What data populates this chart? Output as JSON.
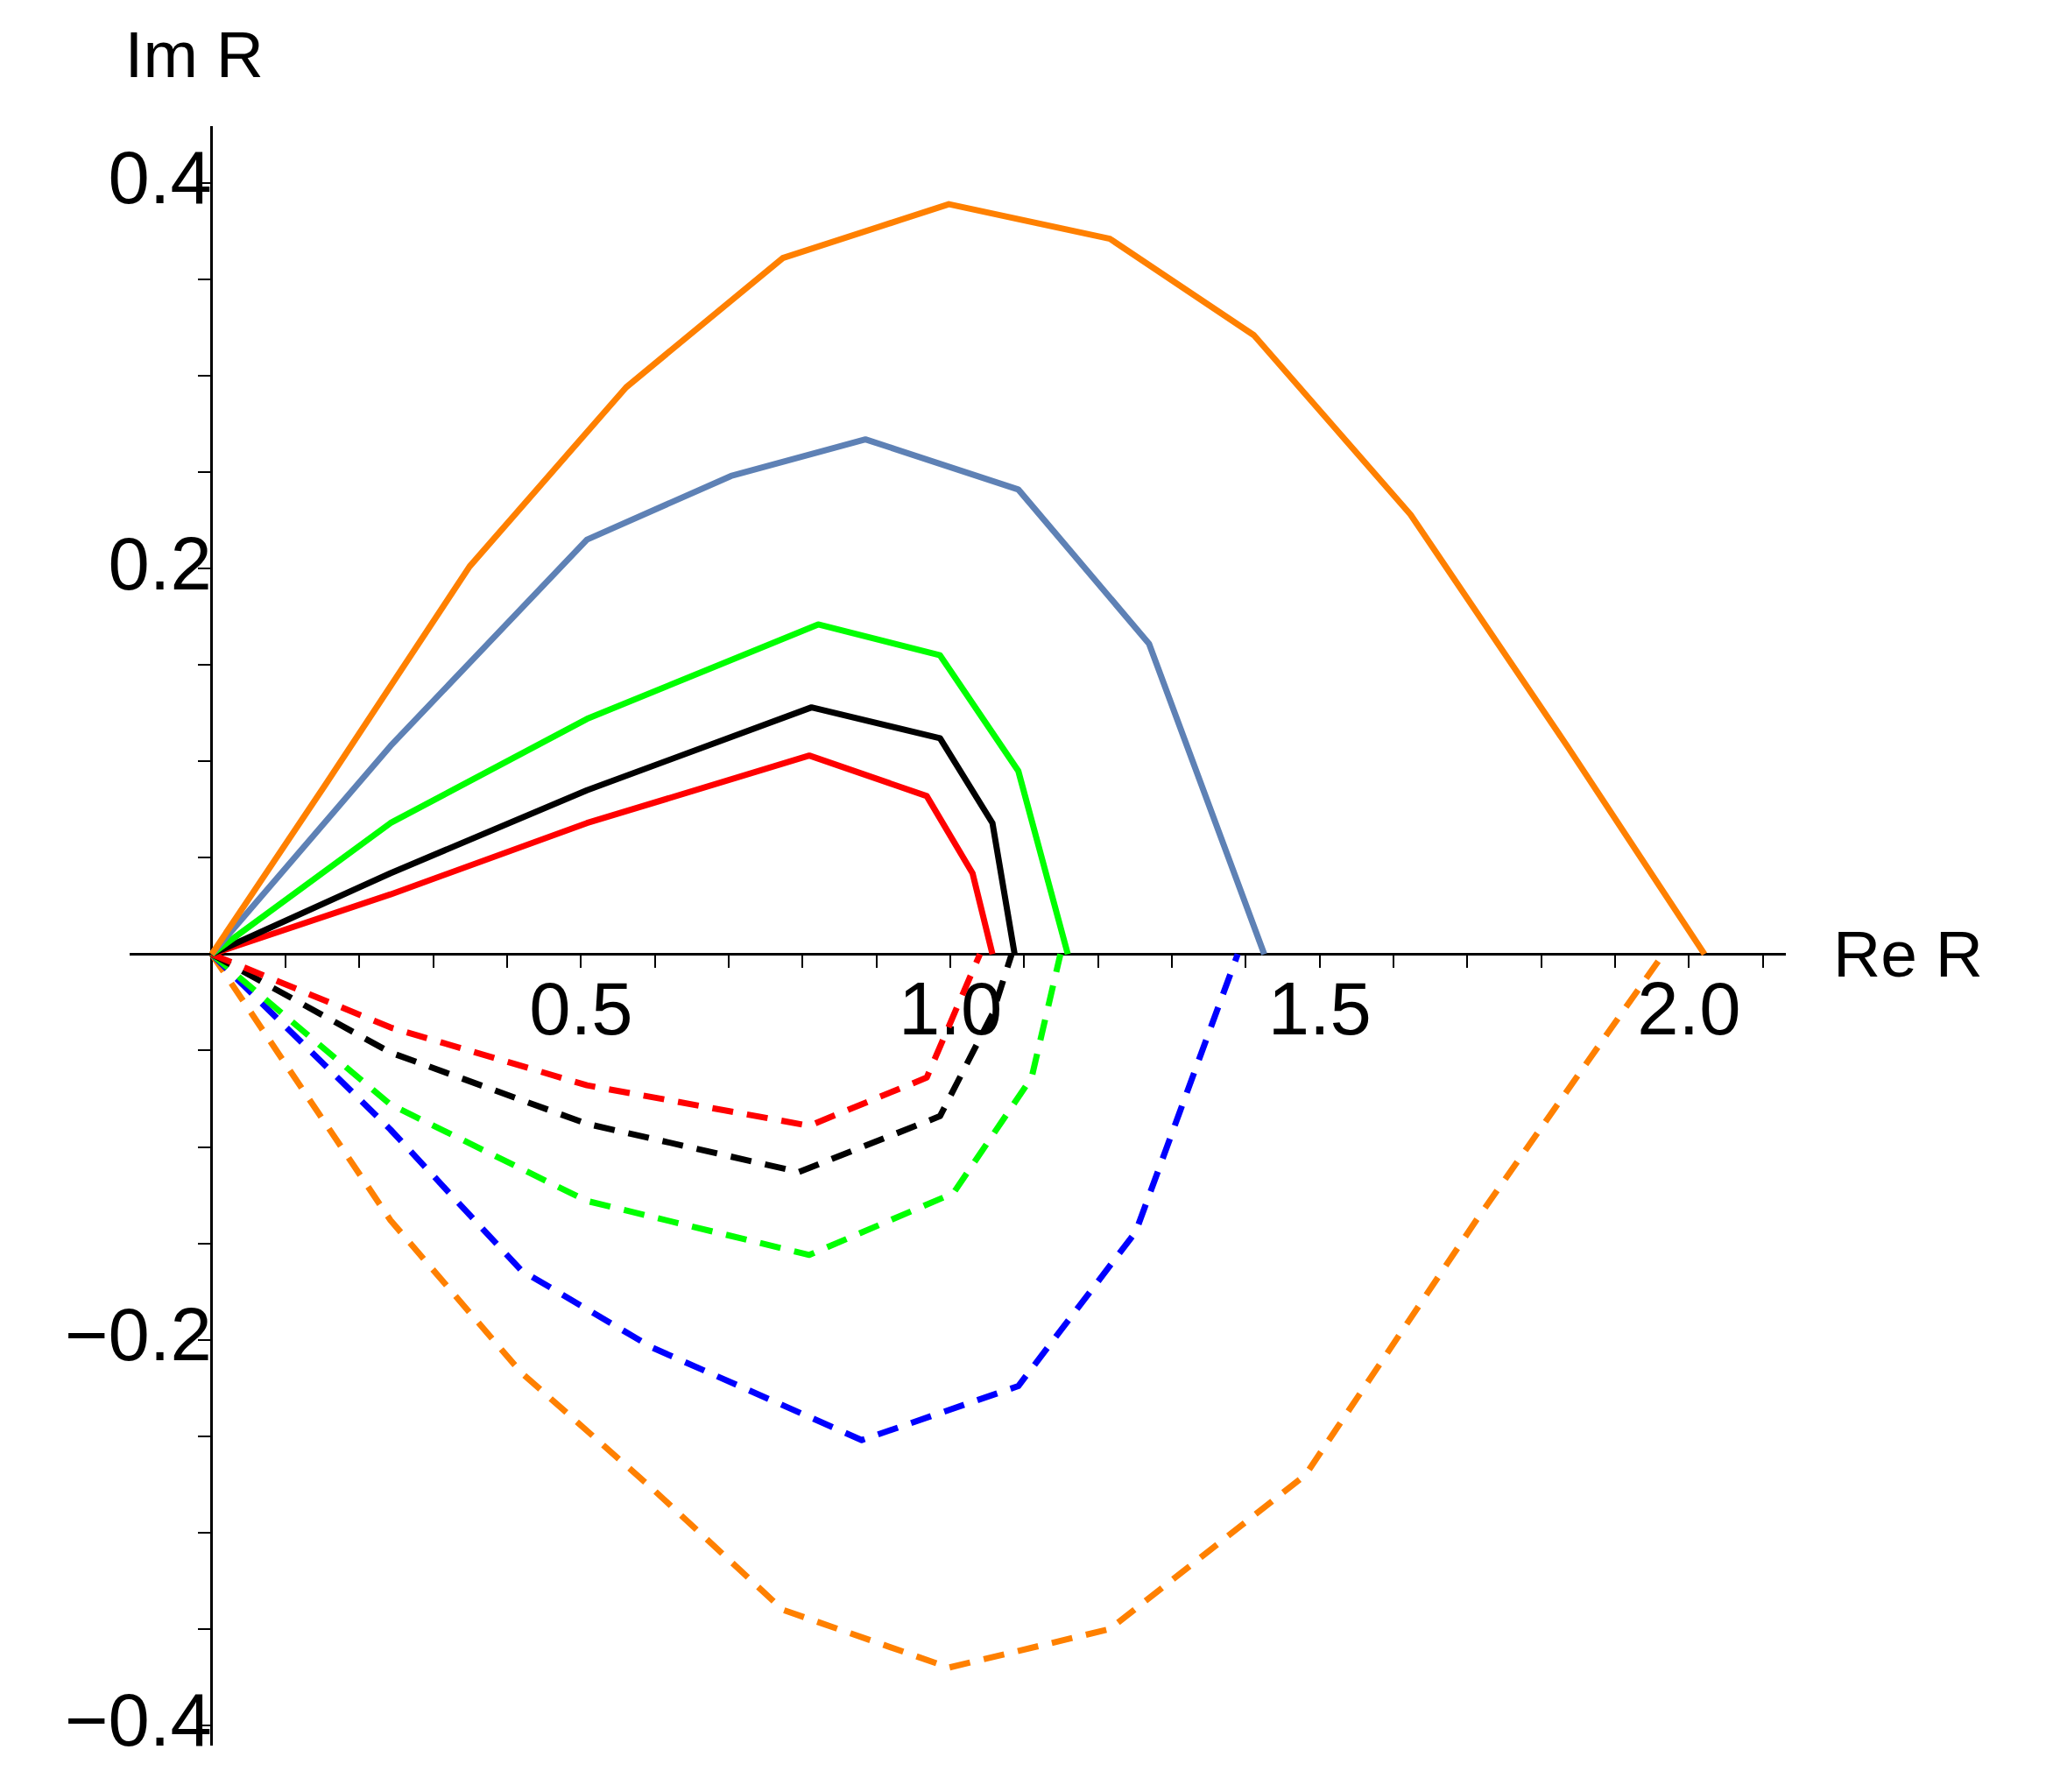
{
  "chart_data": {
    "type": "line",
    "xlabel": "Re R",
    "ylabel": "Im R",
    "xlim": [
      -0.11,
      2.13
    ],
    "ylim": [
      -0.41,
      0.429
    ],
    "xticks": [
      {
        "value": 0.1,
        "label": null
      },
      {
        "value": 0.2,
        "label": null
      },
      {
        "value": 0.3,
        "label": null
      },
      {
        "value": 0.4,
        "label": null
      },
      0.5,
      {
        "value": 0.6,
        "label": null
      },
      {
        "value": 0.7,
        "label": null
      },
      {
        "value": 0.8,
        "label": null
      },
      {
        "value": 0.9,
        "label": null
      },
      {
        "value": 1.0,
        "label": "1.0"
      },
      {
        "value": 1.1,
        "label": null
      },
      {
        "value": 1.2,
        "label": null
      },
      {
        "value": 1.3,
        "label": null
      },
      {
        "value": 1.4,
        "label": null
      },
      1.5,
      {
        "value": 1.6,
        "label": null
      },
      {
        "value": 1.7,
        "label": null
      },
      {
        "value": 1.8,
        "label": null
      },
      {
        "value": 1.9,
        "label": null
      },
      {
        "value": 2.0,
        "label": "2.0"
      },
      {
        "value": 2.1,
        "label": null
      }
    ],
    "yticks": [
      {
        "value": -0.4,
        "label": "−0.4"
      },
      {
        "value": -0.35,
        "label": null
      },
      {
        "value": -0.3,
        "label": null
      },
      {
        "value": -0.25,
        "label": null
      },
      {
        "value": -0.2,
        "label": "−0.2"
      },
      {
        "value": -0.15,
        "label": null
      },
      {
        "value": -0.1,
        "label": null
      },
      {
        "value": -0.05,
        "label": null
      },
      {
        "value": 0.05,
        "label": null
      },
      {
        "value": 0.1,
        "label": null
      },
      {
        "value": 0.15,
        "label": null
      },
      0.2,
      {
        "value": 0.25,
        "label": null
      },
      {
        "value": 0.3,
        "label": null
      },
      {
        "value": 0.35,
        "label": null
      },
      0.4
    ],
    "grid": false,
    "legend": false,
    "marker": "none",
    "series": [
      {
        "color": "#ff8000",
        "line_style": "solid",
        "x": [
          0,
          0.154,
          0.349,
          0.561,
          0.773,
          0.998,
          1.216,
          1.411,
          1.623,
          1.835,
          2.021
        ],
        "values": [
          0,
          0.088,
          0.201,
          0.294,
          0.361,
          0.389,
          0.371,
          0.321,
          0.228,
          0.108,
          0
        ]
      },
      {
        "color": "#5e81b5",
        "line_style": "solid",
        "x": [
          0,
          0.242,
          0.508,
          0.703,
          0.885,
          1.092,
          1.269,
          1.425
        ],
        "values": [
          0,
          0.108,
          0.215,
          0.248,
          0.267,
          0.241,
          0.161,
          0
        ]
      },
      {
        "color": "#00ff00",
        "line_style": "solid",
        "x": [
          0,
          0.242,
          0.508,
          0.821,
          0.986,
          1.092,
          1.159
        ],
        "values": [
          0,
          0.068,
          0.122,
          0.171,
          0.155,
          0.095,
          0
        ]
      },
      {
        "color": "#000000",
        "line_style": "solid",
        "x": [
          0,
          0.242,
          0.508,
          0.812,
          0.986,
          1.057,
          1.087
        ],
        "values": [
          0,
          0.042,
          0.085,
          0.128,
          0.112,
          0.068,
          0
        ]
      },
      {
        "color": "#ff0000",
        "line_style": "solid",
        "x": [
          0,
          0.242,
          0.508,
          0.809,
          0.968,
          1.03,
          1.057
        ],
        "values": [
          0,
          0.031,
          0.068,
          0.103,
          0.082,
          0.042,
          0
        ]
      },
      {
        "color": "#ff0000",
        "line_style": "dashed",
        "x": [
          0,
          0.242,
          0.508,
          0.809,
          0.968,
          1.04
        ],
        "values": [
          0,
          -0.038,
          -0.068,
          -0.089,
          -0.064,
          0
        ]
      },
      {
        "color": "#000000",
        "line_style": "dashed",
        "x": [
          0,
          0.242,
          0.508,
          0.795,
          0.986,
          1.057,
          1.083
        ],
        "values": [
          0,
          -0.051,
          -0.088,
          -0.113,
          -0.084,
          -0.031,
          0
        ]
      },
      {
        "color": "#00ff00",
        "line_style": "dashed",
        "x": [
          0,
          0.242,
          0.508,
          0.809,
          1.004,
          1.11,
          1.149
        ],
        "values": [
          0,
          -0.078,
          -0.128,
          -0.156,
          -0.124,
          -0.064,
          0
        ]
      },
      {
        "color": "#0000ff",
        "line_style": "dashed",
        "x": [
          0,
          0.242,
          0.419,
          0.596,
          0.88,
          1.092,
          1.251,
          1.389
        ],
        "values": [
          0,
          -0.091,
          -0.164,
          -0.204,
          -0.252,
          -0.224,
          -0.144,
          0
        ]
      },
      {
        "color": "#ff8000",
        "line_style": "dashed",
        "x": [
          0,
          0.242,
          0.419,
          0.596,
          0.773,
          0.998,
          1.216,
          1.481,
          1.712,
          1.965
        ],
        "values": [
          0,
          -0.138,
          -0.217,
          -0.277,
          -0.34,
          -0.37,
          -0.35,
          -0.27,
          -0.138,
          0
        ]
      }
    ]
  }
}
